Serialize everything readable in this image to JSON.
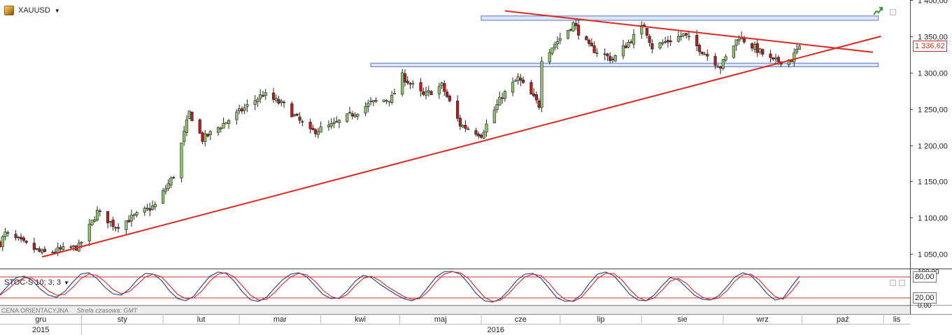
{
  "toolbar": {
    "symbol": "XAUUSD",
    "symbol_icon": "gold-bar-icon",
    "dropdown_icon": "caret-down-icon",
    "chart_icon": "green-trend-icon"
  },
  "indicator": {
    "label": "STOC-S 10; 3; 3",
    "dropdown_icon": "caret-down-icon"
  },
  "status": {
    "price_type": "CENA ORIENTACYJNA",
    "timezone": "Strefa czasowa: GMT"
  },
  "current_price_label": "1 336,62",
  "colors": {
    "up": "#8fc46a",
    "down": "#b51f1f",
    "trendline": "#e0271f",
    "zone_border": "#5a78c8",
    "zone_fill": "#dde6f8",
    "stoch_k": "#1f3d8a",
    "stoch_d": "#d8262b",
    "stoch_level": "#c0392b"
  },
  "chart_data": [
    {
      "type": "candlestick",
      "symbol": "XAUUSD",
      "ylim": [
        1030,
        1400
      ],
      "y_ticks": [
        "1 050,00",
        "1 100,00",
        "1 150,00",
        "1 200,00",
        "1 250,00",
        "1 300,00",
        "1 350,00",
        "1 400,00"
      ],
      "y_tick_values": [
        1050,
        1100,
        1150,
        1200,
        1250,
        1300,
        1350,
        1400
      ],
      "months": [
        "gru",
        "sty",
        "lut",
        "mar",
        "kwi",
        "maj",
        "cze",
        "lip",
        "sie",
        "wrz",
        "paź",
        "lis"
      ],
      "years": [
        "2015",
        "2016"
      ],
      "date_range": [
        "2015-12-01",
        "2016-11-10"
      ],
      "last_price": 1336.62,
      "anchor_prices": [
        {
          "date": "2015-12-01",
          "price": 1065
        },
        {
          "date": "2015-12-03",
          "price": 1078
        },
        {
          "date": "2015-12-17",
          "price": 1051
        },
        {
          "date": "2015-12-31",
          "price": 1060
        },
        {
          "date": "2016-01-07",
          "price": 1108
        },
        {
          "date": "2016-01-14",
          "price": 1088
        },
        {
          "date": "2016-01-29",
          "price": 1117
        },
        {
          "date": "2016-02-05",
          "price": 1158
        },
        {
          "date": "2016-02-11",
          "price": 1245
        },
        {
          "date": "2016-02-16",
          "price": 1208
        },
        {
          "date": "2016-03-10",
          "price": 1270
        },
        {
          "date": "2016-03-18",
          "price": 1255
        },
        {
          "date": "2016-03-28",
          "price": 1218
        },
        {
          "date": "2016-04-06",
          "price": 1228
        },
        {
          "date": "2016-04-20",
          "price": 1258
        },
        {
          "date": "2016-04-28",
          "price": 1265
        },
        {
          "date": "2016-05-02",
          "price": 1295
        },
        {
          "date": "2016-05-10",
          "price": 1268
        },
        {
          "date": "2016-05-17",
          "price": 1282
        },
        {
          "date": "2016-05-24",
          "price": 1228
        },
        {
          "date": "2016-06-01",
          "price": 1215
        },
        {
          "date": "2016-06-09",
          "price": 1268
        },
        {
          "date": "2016-06-15",
          "price": 1292
        },
        {
          "date": "2016-06-23",
          "price": 1255
        },
        {
          "date": "2016-06-24",
          "price": 1320
        },
        {
          "date": "2016-07-06",
          "price": 1367
        },
        {
          "date": "2016-07-12",
          "price": 1335
        },
        {
          "date": "2016-07-21",
          "price": 1318
        },
        {
          "date": "2016-08-02",
          "price": 1365
        },
        {
          "date": "2016-08-05",
          "price": 1335
        },
        {
          "date": "2016-08-17",
          "price": 1352
        },
        {
          "date": "2016-08-31",
          "price": 1308
        },
        {
          "date": "2016-09-07",
          "price": 1350
        },
        {
          "date": "2016-09-20",
          "price": 1315
        },
        {
          "date": "2016-09-27",
          "price": 1318
        },
        {
          "date": "2016-09-30",
          "price": 1337
        }
      ],
      "support_zones": [
        {
          "start": "2016-06-01",
          "end": "2016-10-30",
          "from": 1372,
          "to": 1378
        },
        {
          "start": "2016-04-20",
          "end": "2016-10-30",
          "from": 1308,
          "to": 1313
        }
      ],
      "trendlines": [
        {
          "start": {
            "date": "2015-12-17",
            "price": 1046
          },
          "end": {
            "date": "2016-10-31",
            "price": 1350
          }
        },
        {
          "start": {
            "date": "2016-06-10",
            "price": 1385
          },
          "end": {
            "date": "2016-10-28",
            "price": 1328
          }
        }
      ]
    },
    {
      "type": "line",
      "indicator": "STOC-S 10; 3; 3",
      "ylim": [
        0,
        100
      ],
      "y_ticks": [
        "0,00",
        "100,00"
      ],
      "levels": [
        80,
        20
      ],
      "level_labels": [
        "80,00",
        "20,00"
      ],
      "series": [
        {
          "name": "%K",
          "values": [
            30,
            55,
            78,
            82,
            70,
            45,
            28,
            22,
            38,
            65,
            88,
            92,
            76,
            50,
            32,
            28,
            45,
            72,
            90,
            88,
            70,
            40,
            18,
            12,
            25,
            55,
            82,
            94,
            90,
            68,
            38,
            15,
            10,
            22,
            48,
            72,
            88,
            92,
            80,
            55,
            30,
            18,
            20,
            40,
            68,
            85,
            78,
            60,
            45,
            30,
            18,
            12,
            22,
            50,
            80,
            95,
            96,
            88,
            62,
            32,
            12,
            8,
            18,
            42,
            70,
            88,
            90,
            76,
            48,
            20,
            10,
            12,
            30,
            62,
            88,
            94,
            84,
            58,
            30,
            14,
            12,
            28,
            55,
            78,
            72,
            50,
            28,
            16,
            14,
            26,
            52,
            80,
            92,
            84,
            60,
            32,
            14,
            20,
            52,
            82
          ]
        },
        {
          "name": "%D",
          "values": [
            28,
            45,
            65,
            78,
            76,
            60,
            40,
            28,
            30,
            50,
            75,
            88,
            85,
            66,
            44,
            32,
            38,
            58,
            80,
            88,
            80,
            56,
            30,
            18,
            20,
            40,
            68,
            88,
            92,
            80,
            55,
            28,
            14,
            16,
            35,
            60,
            80,
            90,
            86,
            68,
            42,
            24,
            18,
            30,
            55,
            76,
            82,
            70,
            52,
            38,
            24,
            16,
            18,
            38,
            66,
            88,
            95,
            92,
            76,
            48,
            22,
            10,
            14,
            32,
            58,
            80,
            88,
            84,
            62,
            34,
            15,
            10,
            22,
            48,
            76,
            90,
            90,
            72,
            44,
            22,
            12,
            20,
            42,
            68,
            76,
            62,
            38,
            22,
            15,
            20,
            40,
            68,
            86,
            88,
            72,
            46,
            24,
            16,
            38,
            68
          ]
        }
      ]
    }
  ]
}
